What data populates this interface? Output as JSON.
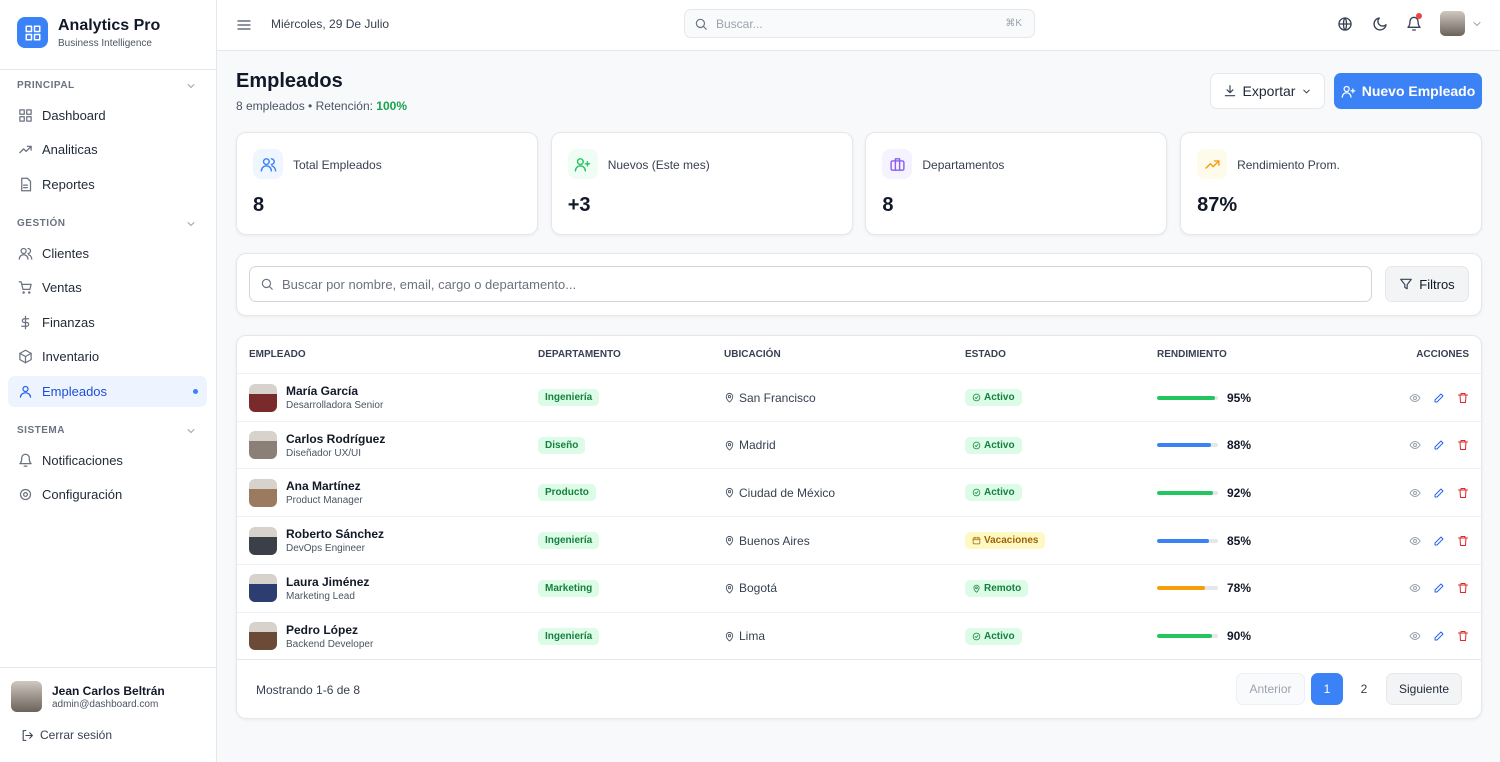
{
  "sidebar": {
    "brand": "Analytics Pro",
    "tagline": "Business Intelligence",
    "sections": [
      {
        "title": "PRINCIPAL",
        "items": [
          "Dashboard",
          "Analiticas",
          "Reportes"
        ]
      },
      {
        "title": "GESTIÓN",
        "items": [
          "Clientes",
          "Ventas",
          "Finanzas",
          "Inventario",
          "Empleados"
        ]
      },
      {
        "title": "SISTEMA",
        "items": [
          "Notificaciones",
          "Configuración"
        ]
      }
    ],
    "active": "Empleados",
    "user": {
      "name": "Jean Carlos Beltrán",
      "email": "admin@dashboard.com"
    },
    "logout": "Cerrar sesión"
  },
  "header": {
    "date": "Miércoles, 29 De Julio",
    "search_placeholder": "Buscar...",
    "shortcut": "⌘K"
  },
  "page": {
    "title": "Empleados",
    "subtitle": "8 empleados • Retención:",
    "retention": "100%",
    "export": "Exportar",
    "new": "Nuevo Empleado"
  },
  "stats": [
    {
      "label": "Total Empleados",
      "value": "8",
      "color": "#3b82f6",
      "bg": "#eff6ff"
    },
    {
      "label": "Nuevos (Este mes)",
      "value": "+3",
      "color": "#22c55e",
      "bg": "#f0fdf4"
    },
    {
      "label": "Departamentos",
      "value": "8",
      "color": "#8b5cf6",
      "bg": "#f5f3ff"
    },
    {
      "label": "Rendimiento Prom.",
      "value": "87%",
      "color": "#f59e0b",
      "bg": "#fffbeb"
    }
  ],
  "search": {
    "placeholder": "Buscar por nombre, email, cargo o departamento...",
    "filters": "Filtros"
  },
  "table": {
    "columns": [
      "EMPLEADO",
      "DEPARTAMENTO",
      "UBICACIÓN",
      "ESTADO",
      "RENDIMIENTO",
      "ACCIONES"
    ],
    "rows": [
      {
        "name": "María García",
        "role": "Desarrolladora Senior",
        "department": "Ingeniería",
        "location": "San Francisco",
        "status": "Activo",
        "performance": {
          "value": 95,
          "label": "95%"
        },
        "color": "#22c55e"
      },
      {
        "name": "Carlos Rodríguez",
        "role": "Diseñador UX/UI",
        "department": "Diseño",
        "location": "Madrid",
        "status": "Activo",
        "performance": {
          "value": 88,
          "label": "88%"
        },
        "color": "#3b82f6"
      },
      {
        "name": "Ana Martínez",
        "role": "Product Manager",
        "department": "Producto",
        "location": "Ciudad de México",
        "status": "Activo",
        "performance": {
          "value": 92,
          "label": "92%"
        },
        "color": "#22c55e"
      },
      {
        "name": "Roberto Sánchez",
        "role": "DevOps Engineer",
        "department": "Ingeniería",
        "location": "Buenos Aires",
        "status": "Vacaciones",
        "performance": {
          "value": 85,
          "label": "85%"
        },
        "color": "#3b82f6"
      },
      {
        "name": "Laura Jiménez",
        "role": "Marketing Lead",
        "department": "Marketing",
        "location": "Bogotá",
        "status": "Remoto",
        "performance": {
          "value": 78,
          "label": "78%"
        },
        "color": "#f59e0b"
      },
      {
        "name": "Pedro López",
        "role": "Backend Developer",
        "department": "Ingeniería",
        "location": "Lima",
        "status": "Activo",
        "performance": {
          "value": 90,
          "label": "90%"
        },
        "color": "#22c55e"
      }
    ]
  },
  "pagination": {
    "info": "Mostrando 1-6 de 8",
    "prev": "Anterior",
    "pages": [
      "1",
      "2"
    ],
    "next": "Siguiente"
  }
}
